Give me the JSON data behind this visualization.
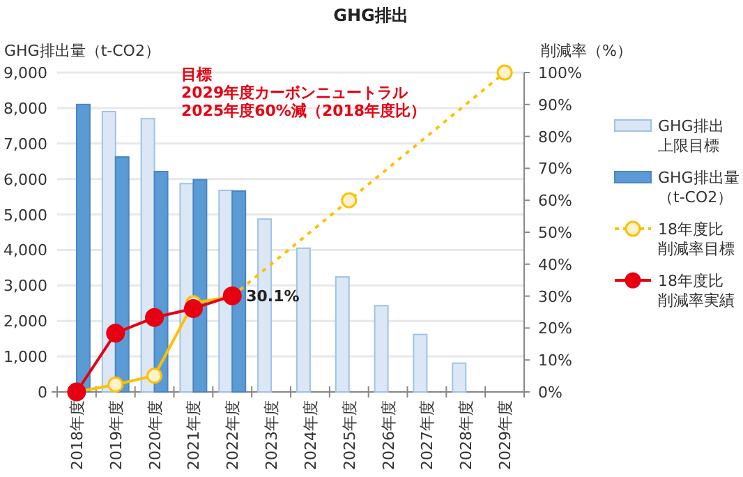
{
  "chart_data": {
    "type": "bar",
    "title": "GHG排出",
    "ylabel": "GHG排出量（t-CO2）",
    "y2label": "削減率（%）",
    "categories": [
      "2018年度",
      "2019年度",
      "2020年度",
      "2021年度",
      "2022年度",
      "2023年度",
      "2024年度",
      "2025年度",
      "2026年度",
      "2027年度",
      "2028年度",
      "2029年度"
    ],
    "ylim": [
      0,
      9000
    ],
    "yticks": [
      0,
      {
        "value": 1000,
        "label": "1,000"
      },
      {
        "value": 2000,
        "label": "2,000"
      },
      {
        "value": 3000,
        "label": "3,000"
      },
      {
        "value": 4000,
        "label": "4,000"
      },
      {
        "value": 5000,
        "label": "5,000"
      },
      {
        "value": 6000,
        "label": "6,000"
      },
      {
        "value": 7000,
        "label": "7,000"
      },
      {
        "value": 8000,
        "label": "8,000"
      },
      {
        "value": 9000,
        "label": "9,000"
      }
    ],
    "y2lim": [
      0,
      100
    ],
    "y2ticks": [
      {
        "value": 0,
        "label": "0%"
      },
      {
        "value": 10,
        "label": "10%"
      },
      {
        "value": 20,
        "label": "20%"
      },
      {
        "value": 30,
        "label": "30%"
      },
      {
        "value": 40,
        "label": "40%"
      },
      {
        "value": 50,
        "label": "50%"
      },
      {
        "value": 60,
        "label": "60%"
      },
      {
        "value": 70,
        "label": "70%"
      },
      {
        "value": 80,
        "label": "80%"
      },
      {
        "value": 90,
        "label": "90%"
      },
      {
        "value": 100,
        "label": "100%"
      }
    ],
    "grid": "y",
    "legend": "right",
    "annotations": [
      "目標\n2029年度カーボンニュートラル\n2025年度60%減（2018年度比）"
    ],
    "series": [
      {
        "name": "GHG排出上限目標",
        "color": "#dce7f6",
        "values": [
          null,
          7900,
          7700,
          5870,
          5680,
          4870,
          4050,
          3240,
          2430,
          1620,
          810,
          null
        ]
      },
      {
        "name": "GHG排出量（t-CO2）",
        "color": "#5b9bd5",
        "values": [
          8100,
          6620,
          6210,
          5980,
          5660,
          null,
          null,
          null,
          null,
          null,
          null,
          null
        ]
      },
      {
        "type": "line",
        "axis": "y2",
        "color": "#ffc000",
        "marker": "circle",
        "line_style": "solid",
        "values": [
          0,
          2.3,
          5.1,
          27.8,
          30,
          null,
          null,
          null,
          null,
          null,
          null,
          null
        ]
      },
      {
        "name": "18年度比削減率目標",
        "type": "line",
        "axis": "y2",
        "color": "#ffc000",
        "marker": "circle",
        "line_style": "dotted",
        "values": [
          null,
          null,
          null,
          null,
          30,
          null,
          null,
          60,
          null,
          null,
          null,
          100
        ]
      },
      {
        "name": "18年度比削減率実績",
        "type": "line",
        "axis": "y2",
        "color": "#e60012",
        "marker": "circle",
        "line_style": "solid",
        "values": [
          0,
          18.4,
          23.3,
          26.1,
          30.1,
          null,
          null,
          null,
          null,
          null,
          null,
          null
        ],
        "value_labels": [
          null,
          null,
          null,
          null,
          "30.1%",
          null,
          null,
          null,
          null,
          null,
          null,
          null
        ]
      }
    ]
  }
}
